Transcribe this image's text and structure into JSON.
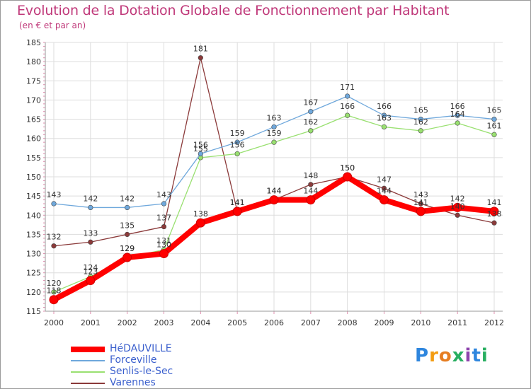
{
  "chart_data": {
    "type": "line",
    "title": "Evolution de la Dotation Globale de Fonctionnement par Habitant",
    "subtitle": "(en € et par an)",
    "x": [
      "2000",
      "2001",
      "2002",
      "2003",
      "2004",
      "2005",
      "2006",
      "2007",
      "2008",
      "2009",
      "2010",
      "2011",
      "2012"
    ],
    "ylim": [
      115,
      185
    ],
    "yticks": [
      115,
      120,
      125,
      130,
      135,
      140,
      145,
      150,
      155,
      160,
      165,
      170,
      175,
      180,
      185
    ],
    "grid": true,
    "series": [
      {
        "name": "HéDAUVILLE",
        "color": "#ff0000",
        "values": [
          118,
          123,
          129,
          130,
          138,
          141,
          144,
          144,
          150,
          144,
          141,
          142,
          141
        ]
      },
      {
        "name": "Forceville",
        "color": "#6fa8dc",
        "values": [
          143,
          142,
          142,
          143,
          156,
          159,
          163,
          167,
          171,
          166,
          165,
          166,
          165
        ]
      },
      {
        "name": "Senlis-le-Sec",
        "color": "#99e070",
        "values": [
          120,
          124,
          129,
          131,
          155,
          156,
          159,
          162,
          166,
          163,
          162,
          164,
          161
        ]
      },
      {
        "name": "Varennes",
        "color": "#8b3a3a",
        "values": [
          132,
          133,
          135,
          137,
          181,
          141,
          144,
          148,
          150,
          147,
          143,
          140,
          138
        ]
      }
    ]
  },
  "logo": {
    "text": "Proxiti",
    "letters": [
      "P",
      "r",
      "o",
      "x",
      "i",
      "t",
      "i"
    ],
    "colors": [
      "#2e86de",
      "#f39c12",
      "#e67e22",
      "#27ae60",
      "#8e44ad",
      "#2e86de",
      "#27ae60"
    ]
  }
}
